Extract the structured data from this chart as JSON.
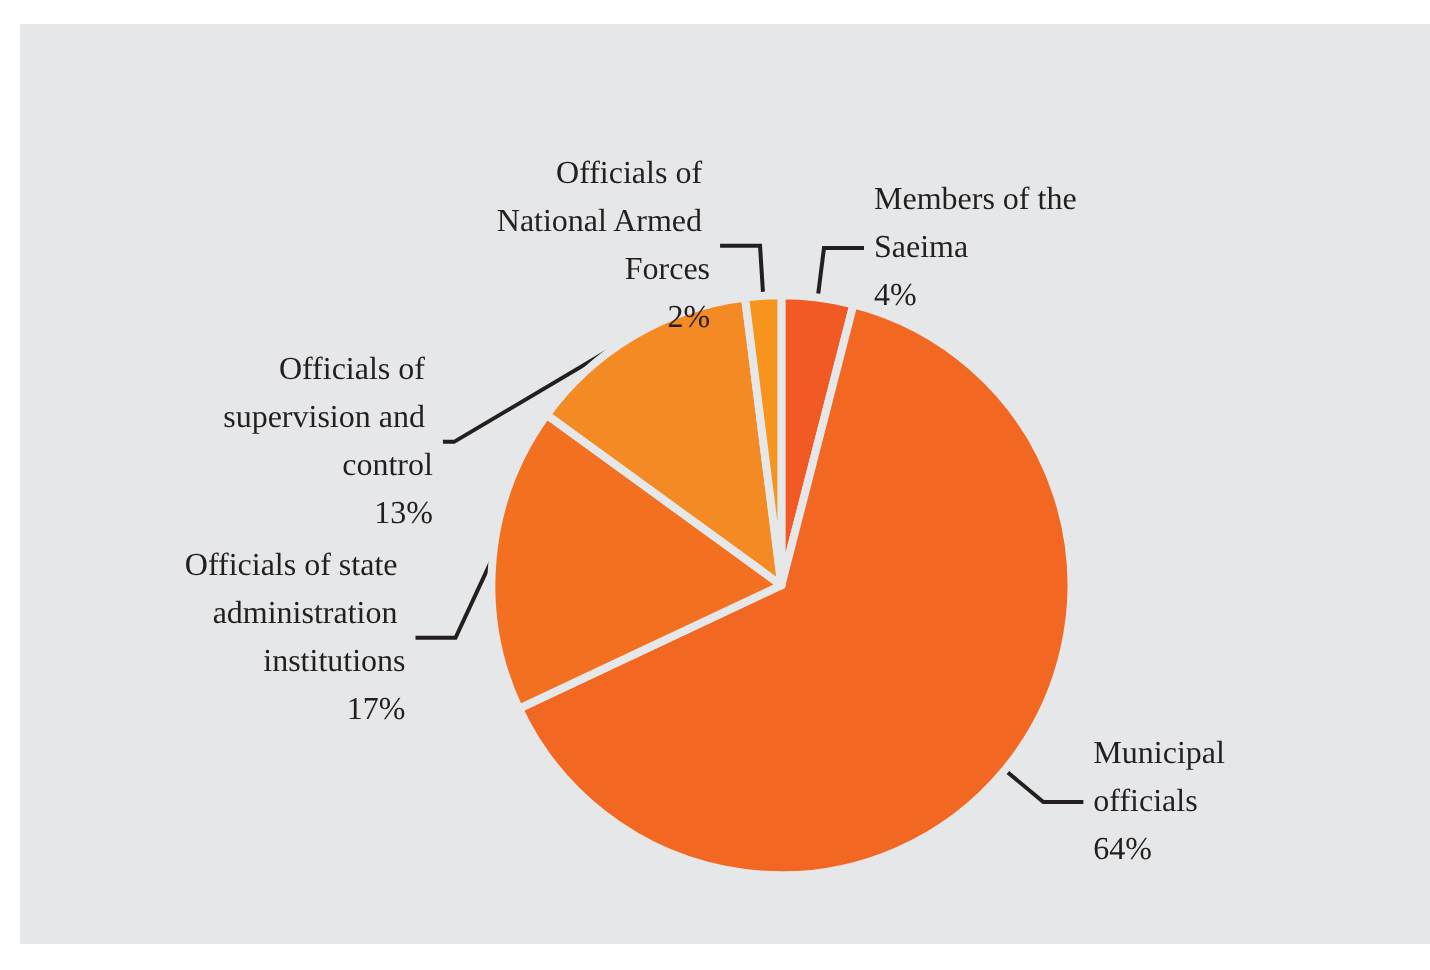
{
  "chart_data": {
    "type": "pie",
    "categories": [
      "Members of the Saeima",
      "Municipal officials",
      "Officials of state administration institutions",
      "Officials of supervision and control",
      "Officials of National Armed Forces"
    ],
    "values": [
      4,
      64,
      17,
      13,
      2
    ],
    "value_labels": [
      "4%",
      "64%",
      "17%",
      "13%",
      "2%"
    ],
    "colors": [
      "#f15a24",
      "#f26722",
      "#f37021",
      "#f48a23",
      "#f7941d"
    ]
  }
}
